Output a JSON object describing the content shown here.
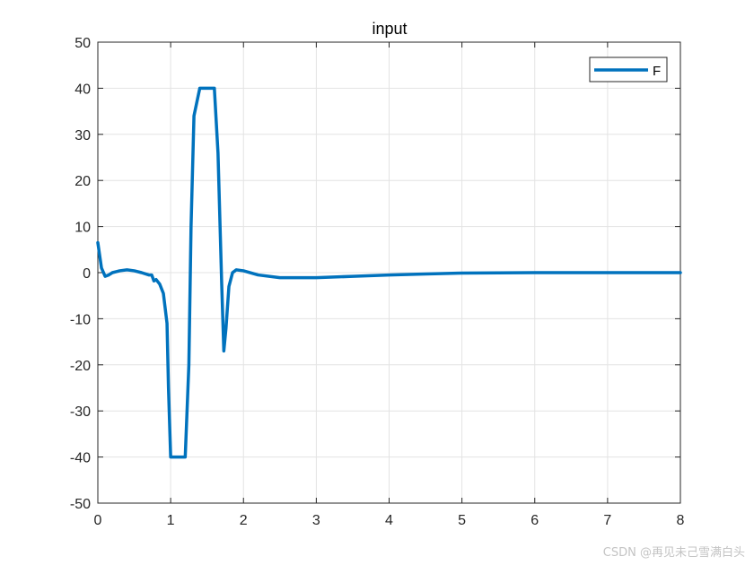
{
  "chart_data": {
    "type": "line",
    "title": "input",
    "xlabel": "",
    "ylabel": "",
    "xlim": [
      0,
      8
    ],
    "ylim": [
      -50,
      50
    ],
    "xticks": [
      0,
      1,
      2,
      3,
      4,
      5,
      6,
      7,
      8
    ],
    "yticks": [
      -50,
      -40,
      -30,
      -20,
      -10,
      0,
      10,
      20,
      30,
      40,
      50
    ],
    "grid": true,
    "legend": {
      "placement": "top-right"
    },
    "series": [
      {
        "name": "F",
        "color": "#0072BD",
        "x": [
          0,
          0.05,
          0.1,
          0.15,
          0.2,
          0.3,
          0.4,
          0.5,
          0.6,
          0.7,
          0.74,
          0.77,
          0.8,
          0.85,
          0.9,
          0.95,
          0.97,
          1.0,
          1.05,
          1.15,
          1.2,
          1.25,
          1.28,
          1.32,
          1.4,
          1.55,
          1.6,
          1.65,
          1.7,
          1.73,
          1.76,
          1.8,
          1.85,
          1.9,
          2.0,
          2.2,
          2.5,
          3.0,
          3.5,
          4.0,
          4.5,
          5.0,
          6.0,
          7.0,
          8.0
        ],
        "y": [
          6.5,
          1,
          -0.8,
          -0.5,
          0,
          0.4,
          0.6,
          0.4,
          0,
          -0.5,
          -0.5,
          -1.8,
          -1.5,
          -2.5,
          -4.5,
          -11,
          -25,
          -40,
          -40,
          -40,
          -40,
          -20,
          10,
          34,
          40,
          40,
          40,
          26,
          -2,
          -17,
          -12,
          -3,
          0,
          0.6,
          0.4,
          -0.5,
          -1.1,
          -1.1,
          -0.8,
          -0.5,
          -0.3,
          -0.1,
          0,
          0,
          0
        ]
      }
    ]
  },
  "watermark": "CSDN @再见未己雪满白头"
}
